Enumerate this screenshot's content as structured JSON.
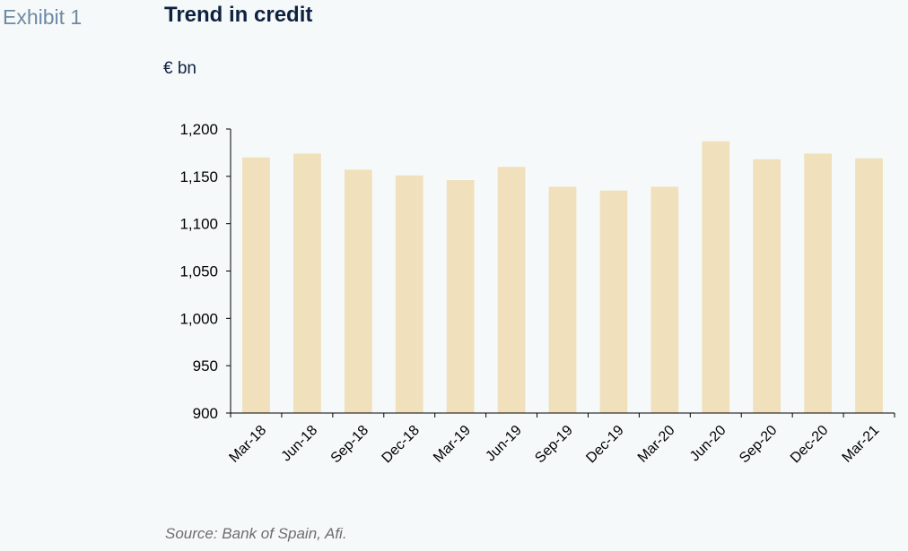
{
  "header": {
    "exhibit_label": "Exhibit 1",
    "title": "Trend in credit",
    "unit_label": "€ bn"
  },
  "footer": {
    "source": "Source: Bank of Spain, Afi."
  },
  "colors": {
    "background": "#f6f9fa",
    "bar": "#f0e0bb",
    "axis": "#000000",
    "title": "#0e2240",
    "exhibit": "#6f8aa2",
    "source": "#6d6d6d"
  },
  "chart_data": {
    "type": "bar",
    "title": "Trend in credit",
    "ylabel": "€ bn",
    "xlabel": "",
    "categories": [
      "Mar-18",
      "Jun-18",
      "Sep-18",
      "Dec-18",
      "Mar-19",
      "Jun-19",
      "Sep-19",
      "Dec-19",
      "Mar-20",
      "Jun-20",
      "Sep-20",
      "Dec-20",
      "Mar-21"
    ],
    "values": [
      1170,
      1174,
      1157,
      1151,
      1146,
      1160,
      1139,
      1135,
      1139,
      1187,
      1168,
      1174,
      1169
    ],
    "ylim": [
      900,
      1200
    ],
    "yticks": [
      900,
      950,
      1000,
      1050,
      1100,
      1150,
      1200
    ],
    "ytick_labels": [
      "900",
      "950",
      "1,000",
      "1,050",
      "1,100",
      "1,150",
      "1,200"
    ],
    "grid": false,
    "legend": "none"
  }
}
